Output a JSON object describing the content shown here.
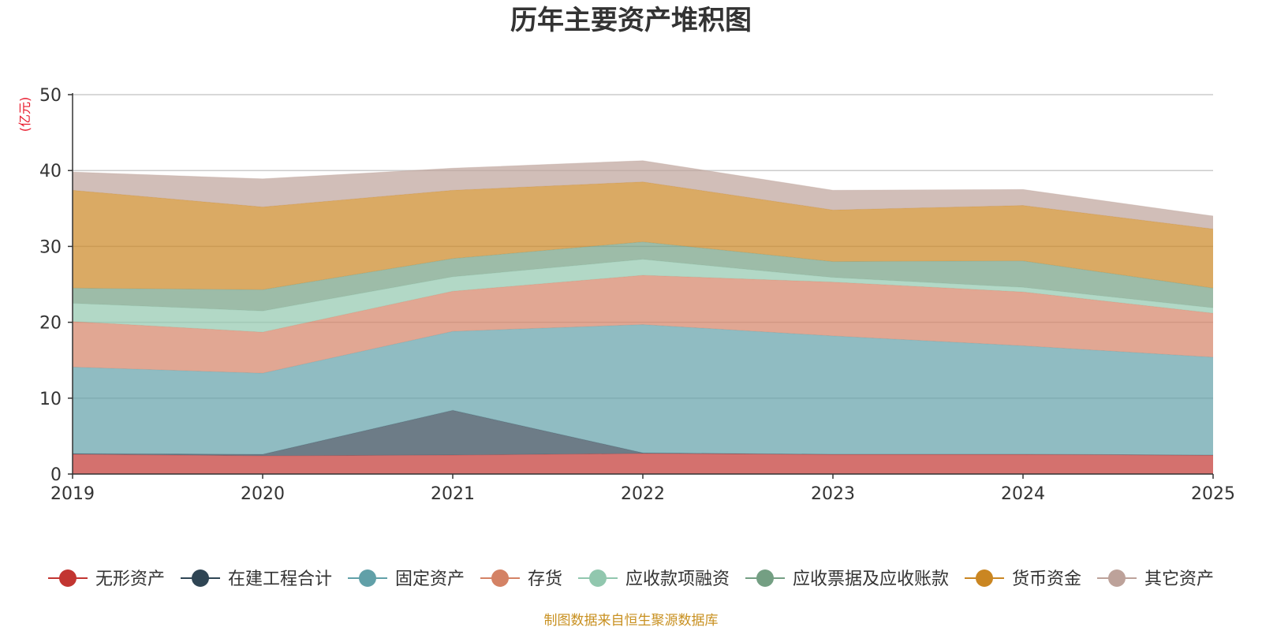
{
  "chart_data": {
    "type": "area",
    "stacked": true,
    "title": "历年主要资产堆积图",
    "ylabel": "(亿元)",
    "xlabel": "",
    "x": [
      "2019",
      "2020",
      "2021",
      "2022",
      "2023",
      "2024",
      "2025"
    ],
    "ylim": [
      0,
      50
    ],
    "yticks": [
      0,
      10,
      20,
      30,
      40,
      50
    ],
    "grid": true,
    "legend_position": "bottom",
    "series": [
      {
        "name": "无形资产",
        "color": "#c23531",
        "values": [
          2.6,
          2.4,
          2.5,
          2.7,
          2.6,
          2.6,
          2.5
        ]
      },
      {
        "name": "在建工程合计",
        "color": "#2f4554",
        "values": [
          0.1,
          0.2,
          5.9,
          0.1,
          0.0,
          0.0,
          0.0
        ]
      },
      {
        "name": "固定资产",
        "color": "#61a0a8",
        "values": [
          11.4,
          10.7,
          10.4,
          16.9,
          15.6,
          14.3,
          12.9
        ]
      },
      {
        "name": "存货",
        "color": "#d48265",
        "values": [
          6.0,
          5.4,
          5.3,
          6.5,
          7.1,
          7.1,
          5.8
        ]
      },
      {
        "name": "应收款项融资",
        "color": "#91c7ae",
        "values": [
          2.4,
          2.8,
          1.9,
          2.1,
          0.6,
          0.6,
          0.7
        ]
      },
      {
        "name": "应收票据及应收账款",
        "color": "#749f83",
        "values": [
          2.0,
          2.8,
          2.4,
          2.3,
          2.1,
          3.5,
          2.6
        ]
      },
      {
        "name": "货币资金",
        "color": "#ca8622",
        "values": [
          12.9,
          10.9,
          9.0,
          7.9,
          6.8,
          7.3,
          7.8
        ]
      },
      {
        "name": "其它资产",
        "color": "#bda29a",
        "values": [
          2.4,
          3.7,
          2.9,
          2.8,
          2.6,
          2.1,
          1.7
        ]
      }
    ]
  },
  "footer": {
    "source": "制图数据来自恒生聚源数据库"
  },
  "colors": {
    "unit_label": "#e8192c",
    "source_text": "#c89020",
    "grid": "#cccccc",
    "axis": "#333333"
  }
}
